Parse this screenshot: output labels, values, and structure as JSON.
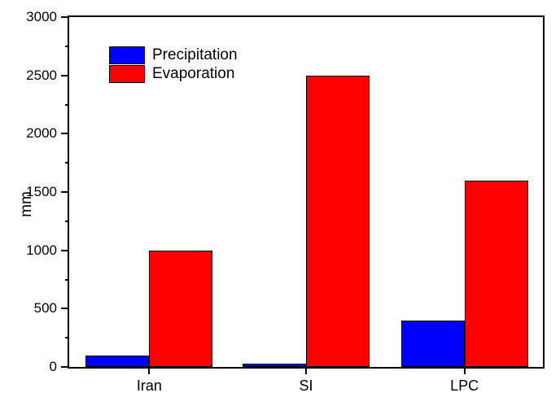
{
  "chart_data": {
    "type": "bar",
    "title": "",
    "categories": [
      "Iran",
      "SI",
      "LPC"
    ],
    "series": [
      {
        "name": "Precipitation",
        "color": "#0000ff",
        "values": [
          100,
          25,
          400
        ]
      },
      {
        "name": "Evaporation",
        "color": "#ff0000",
        "values": [
          1000,
          2500,
          1600
        ]
      }
    ],
    "xlabel": "",
    "ylabel": "mm",
    "ylim": [
      0,
      3000
    ],
    "ytick_step": 500,
    "yminor_step": 250,
    "grid": false,
    "legend_position": "upper-left-inside",
    "axis_color": "#000000",
    "background_color": "#ffffff"
  }
}
